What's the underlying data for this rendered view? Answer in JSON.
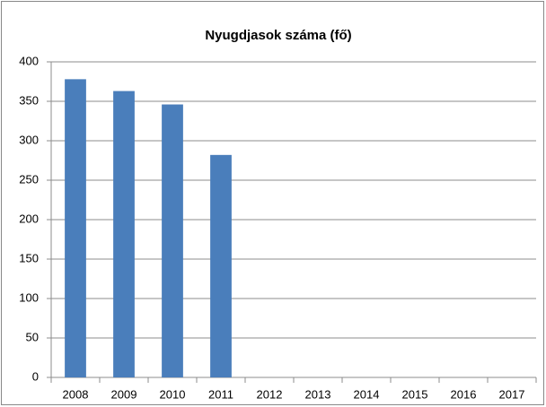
{
  "chart_data": {
    "type": "bar",
    "title": "Nyugdjasok száma (fő)",
    "categories": [
      "2008",
      "2009",
      "2010",
      "2011",
      "2012",
      "2013",
      "2014",
      "2015",
      "2016",
      "2017"
    ],
    "values": [
      378,
      363,
      346,
      282,
      null,
      null,
      null,
      null,
      null,
      null
    ],
    "color": "#4a7ebb",
    "ylim": [
      0,
      400
    ],
    "yticks": [
      0,
      50,
      100,
      150,
      200,
      250,
      300,
      350,
      400
    ],
    "grid": true
  }
}
